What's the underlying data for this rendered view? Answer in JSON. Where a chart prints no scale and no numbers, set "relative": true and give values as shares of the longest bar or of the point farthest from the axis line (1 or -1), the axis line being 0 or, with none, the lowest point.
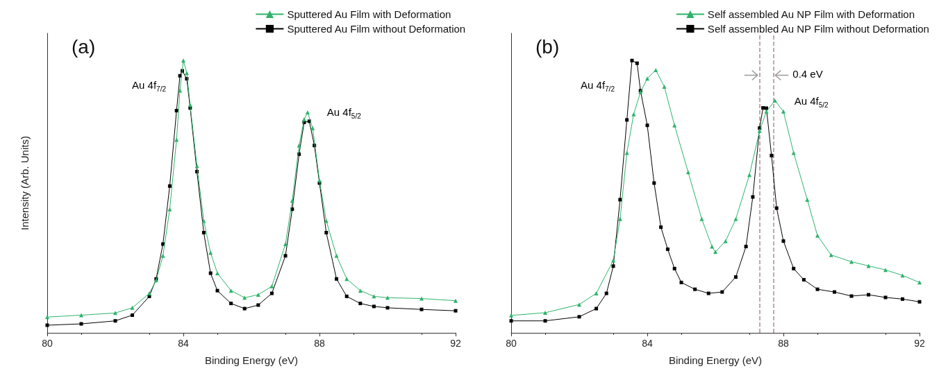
{
  "chart_data": [
    {
      "type": "line",
      "title": "(a)",
      "xlabel": "Binding Energy (eV)",
      "ylabel": "Intensity (Arb. Units)",
      "relative": true,
      "xlim": [
        80,
        92
      ],
      "xticks": [
        80,
        84,
        88,
        92
      ],
      "tick_labels": "x",
      "grid": false,
      "legend": "top right",
      "series": [
        {
          "name": "Sputtered Au Film with Deformation",
          "color": "#2eb36a",
          "marker": "triangle",
          "x": [
            80,
            81,
            82,
            82.5,
            83,
            83.2,
            83.4,
            83.6,
            83.8,
            83.9,
            84,
            84.1,
            84.2,
            84.4,
            84.6,
            84.8,
            85,
            85.4,
            85.8,
            86.2,
            86.6,
            87,
            87.2,
            87.4,
            87.55,
            87.65,
            87.8,
            88,
            88.2,
            88.5,
            88.8,
            89.2,
            89.6,
            90,
            91,
            92
          ],
          "values": [
            0.058,
            0.065,
            0.073,
            0.092,
            0.145,
            0.193,
            0.283,
            0.454,
            0.709,
            0.89,
            1.0,
            0.954,
            0.837,
            0.613,
            0.411,
            0.294,
            0.219,
            0.155,
            0.129,
            0.14,
            0.171,
            0.326,
            0.486,
            0.688,
            0.784,
            0.81,
            0.752,
            0.56,
            0.411,
            0.283,
            0.198,
            0.155,
            0.134,
            0.129,
            0.126,
            0.118
          ]
        },
        {
          "name": "Sputtered Au Film without Deformation",
          "color": "#000000",
          "marker": "square",
          "x": [
            80,
            81,
            82,
            82.5,
            83,
            83.2,
            83.4,
            83.6,
            83.8,
            83.9,
            83.97,
            84.1,
            84.2,
            84.4,
            84.6,
            84.8,
            85,
            85.4,
            85.8,
            86.2,
            86.6,
            87,
            87.2,
            87.4,
            87.55,
            87.7,
            87.85,
            88,
            88.2,
            88.5,
            88.8,
            89.2,
            89.6,
            90,
            91,
            92
          ],
          "values": [
            0.028,
            0.033,
            0.044,
            0.065,
            0.134,
            0.198,
            0.326,
            0.539,
            0.816,
            0.944,
            0.962,
            0.933,
            0.826,
            0.592,
            0.368,
            0.219,
            0.155,
            0.108,
            0.089,
            0.102,
            0.145,
            0.283,
            0.454,
            0.656,
            0.773,
            0.777,
            0.688,
            0.55,
            0.368,
            0.198,
            0.134,
            0.108,
            0.097,
            0.092,
            0.086,
            0.081
          ]
        }
      ],
      "annotations": [
        {
          "text": "Au 4f$_{7/2}$",
          "x": 84,
          "y": 1.0
        },
        {
          "text": "Au 4f$_{5/2}$",
          "x": 87.65,
          "y": 0.81
        }
      ]
    },
    {
      "type": "line",
      "title": "(b)",
      "xlabel": "Binding Energy (eV)",
      "relative": true,
      "xlim": [
        80,
        92
      ],
      "xticks": [
        80,
        84,
        88,
        92
      ],
      "tick_labels": "x",
      "grid": false,
      "legend": "top right",
      "series": [
        {
          "name": "Self assembled Au NP Film with Deformation",
          "color": "#2eb36a",
          "marker": "triangle",
          "x": [
            80,
            81,
            82,
            82.5,
            83,
            83.2,
            83.4,
            83.6,
            83.8,
            84,
            84.25,
            84.5,
            84.8,
            85.2,
            85.6,
            85.9,
            86,
            86.3,
            86.6,
            87,
            87.3,
            87.5,
            87.75,
            88,
            88.3,
            88.7,
            89,
            89.4,
            90,
            90.5,
            91,
            91.5,
            92
          ],
          "values": [
            0.064,
            0.074,
            0.104,
            0.145,
            0.266,
            0.418,
            0.661,
            0.803,
            0.884,
            0.934,
            0.965,
            0.904,
            0.762,
            0.59,
            0.418,
            0.317,
            0.297,
            0.337,
            0.418,
            0.58,
            0.742,
            0.813,
            0.853,
            0.813,
            0.661,
            0.489,
            0.357,
            0.286,
            0.261,
            0.246,
            0.231,
            0.211,
            0.185
          ]
        },
        {
          "name": "Self assembled Au NP Film without Deformation",
          "color": "#000000",
          "marker": "square",
          "x": [
            80,
            81,
            82,
            82.5,
            82.8,
            83,
            83.2,
            83.4,
            83.55,
            83.7,
            83.8,
            84,
            84.2,
            84.4,
            84.6,
            84.8,
            85,
            85.4,
            85.8,
            86.2,
            86.6,
            86.9,
            87.1,
            87.3,
            87.4,
            87.5,
            87.65,
            87.8,
            88,
            88.3,
            88.6,
            89,
            89.5,
            90,
            90.5,
            91,
            91.5,
            92
          ],
          "values": [
            0.044,
            0.044,
            0.059,
            0.089,
            0.145,
            0.245,
            0.489,
            0.782,
            1.0,
            0.99,
            0.889,
            0.762,
            0.55,
            0.388,
            0.307,
            0.236,
            0.185,
            0.16,
            0.145,
            0.15,
            0.205,
            0.317,
            0.499,
            0.752,
            0.826,
            0.825,
            0.651,
            0.458,
            0.337,
            0.236,
            0.195,
            0.16,
            0.15,
            0.135,
            0.14,
            0.13,
            0.124,
            0.114
          ]
        }
      ],
      "ref_lines": [
        {
          "axis": "x",
          "value": 87.3,
          "color": "#b08a8a",
          "line_style": "dashed"
        },
        {
          "axis": "x",
          "value": 87.7,
          "color": "#b08a8a",
          "line_style": "dashed"
        }
      ],
      "annotations": [
        {
          "text": "Au 4f$_{7/2}$",
          "x": 83.55,
          "y": 1.0
        },
        {
          "text": "Au 4f$_{5/2}$",
          "x": 87.75,
          "y": 0.853
        },
        {
          "text": "0.4 eV",
          "x": 87.7,
          "y": 0.95
        }
      ]
    }
  ]
}
